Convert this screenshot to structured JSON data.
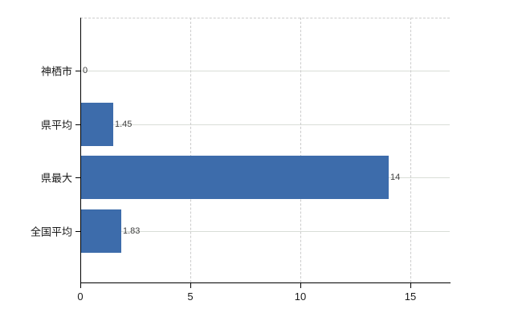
{
  "chart_data": {
    "type": "bar",
    "orientation": "horizontal",
    "title": "",
    "xlabel": "",
    "ylabel": "",
    "categories": [
      "神栖市",
      "県平均",
      "県最大",
      "全国平均"
    ],
    "values": [
      0,
      1.45,
      14,
      1.83
    ],
    "value_labels": [
      "0",
      "1.45",
      "14",
      "1.83"
    ],
    "x_ticks": [
      0,
      5,
      10,
      15
    ],
    "x_tick_labels": [
      "0",
      "5",
      "10",
      "15"
    ],
    "xlim": [
      0,
      16.8
    ],
    "grid": true,
    "legend": false,
    "bar_color": "#3d6cab",
    "axis_color": "#000000",
    "row_gridline_color": "#d9ddd7",
    "dashed_gridline_color": "#cccccc",
    "category_label_color": "#1a1a1a",
    "value_label_color": "#404040",
    "background_color": "#ffffff"
  }
}
